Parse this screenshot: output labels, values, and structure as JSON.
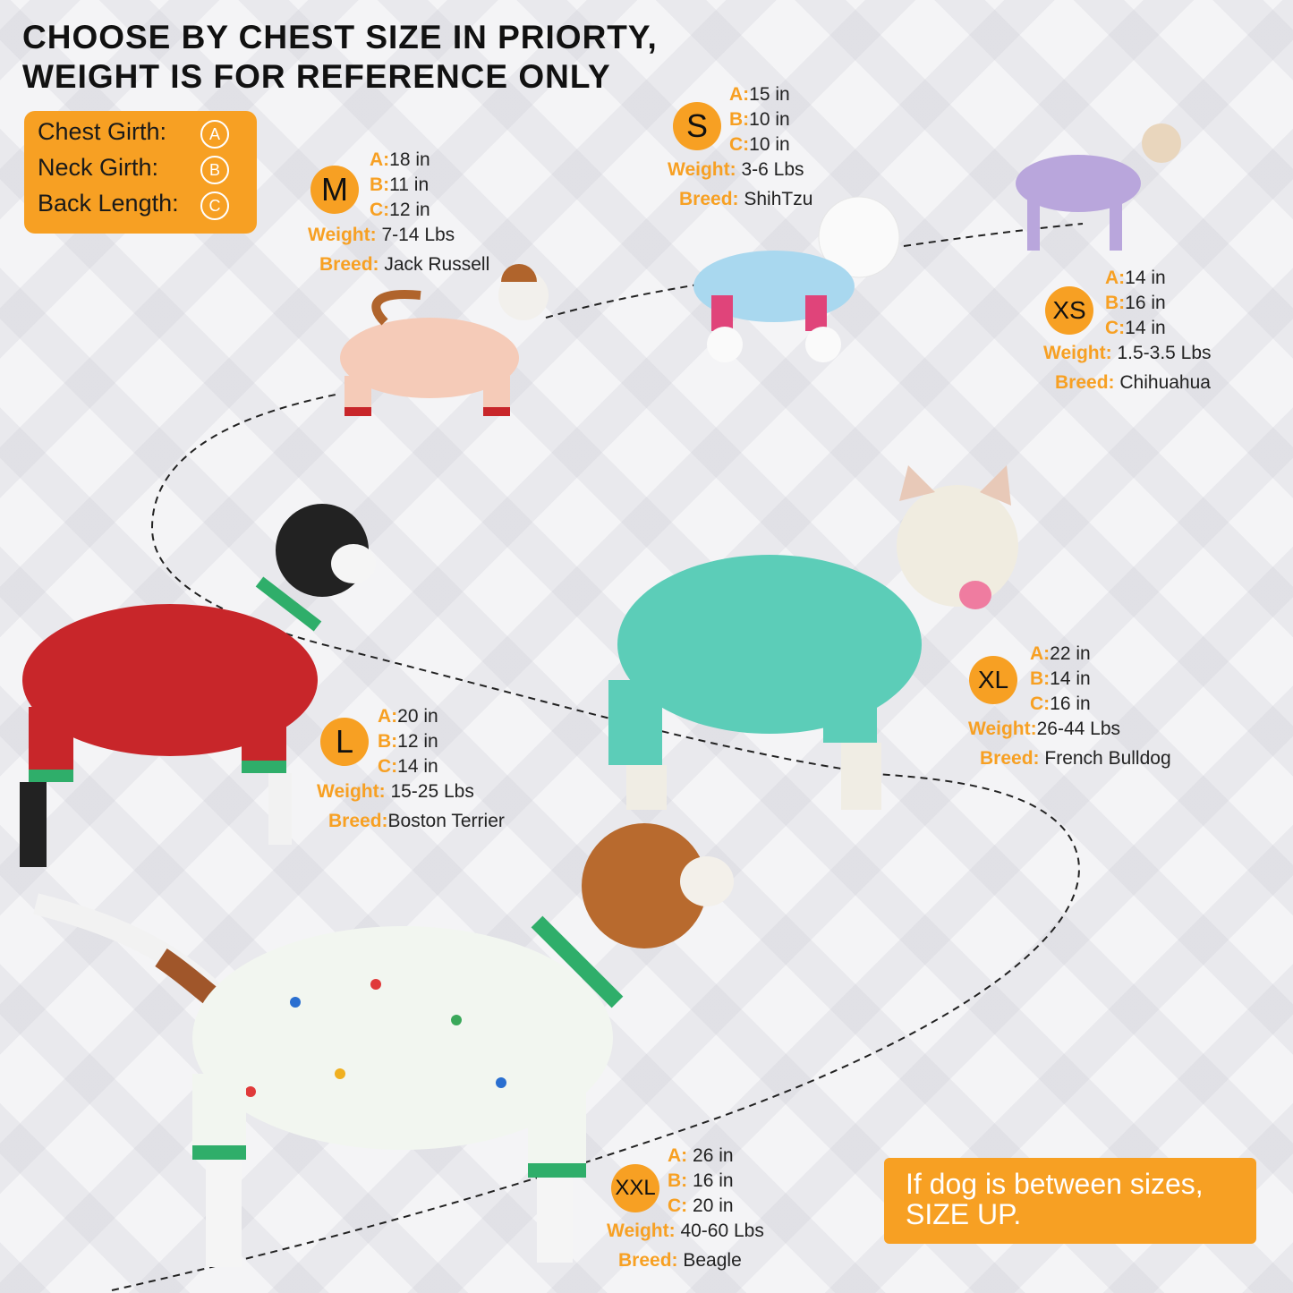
{
  "title": {
    "line1": "CHOOSE BY CHEST SIZE IN PRIORTY,",
    "line2": "WEIGHT IS FOR REFERENCE ONLY"
  },
  "legend": [
    {
      "label": "Chest Girth:",
      "symbol": "A"
    },
    {
      "label": "Neck Girth:",
      "symbol": "B"
    },
    {
      "label": "Back Length:",
      "symbol": "C"
    }
  ],
  "keys": {
    "a": "A:",
    "b": "B:",
    "c": "C:",
    "weight": "Weight:",
    "breed": "Breed:"
  },
  "sizes": {
    "s": {
      "size": "S",
      "a": "15 in",
      "b": "10 in",
      "c": "10 in",
      "weight": "3-6 Lbs",
      "breed": "ShihTzu"
    },
    "m": {
      "size": "M",
      "a": "18 in",
      "b": "11 in",
      "c": "12 in",
      "weight": "7-14 Lbs",
      "breed": "Jack Russell"
    },
    "xs": {
      "size": "XS",
      "a": "14 in",
      "b": "16 in",
      "c": "14 in",
      "weight": "1.5-3.5 Lbs",
      "breed": "Chihuahua"
    },
    "l": {
      "size": "L",
      "a": "20 in",
      "b": "12 in",
      "c": "14 in",
      "weight": "15-25 Lbs",
      "breed": "Boston Terrier"
    },
    "xl": {
      "size": "XL",
      "a": "22 in",
      "b": "14 in",
      "c": "16 in",
      "weight": "26-44 Lbs",
      "breed": "French Bulldog"
    },
    "xxl": {
      "size": "XXL",
      "a": "26 in",
      "b": "16 in",
      "c": "20 in",
      "weight": "40-60 Lbs",
      "breed": "Beagle"
    }
  },
  "note": {
    "line1": "If dog is between sizes,",
    "line2": "SIZE UP."
  },
  "colors": {
    "accent": "#f7a023",
    "xs_pajama": "#b9a6dc",
    "s_pajama": "#a9d8ef",
    "m_pajama": "#f5cbb8",
    "l_pajama": "#c8262a",
    "xl_pajama": "#5ccdb8",
    "xxl_pajama": "#f2f6f0"
  }
}
